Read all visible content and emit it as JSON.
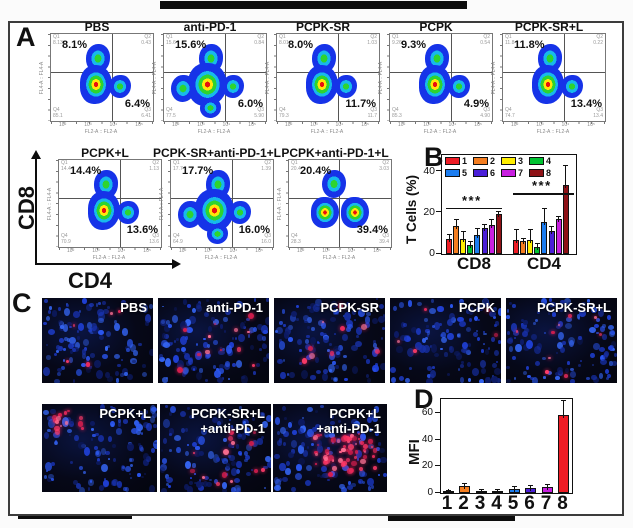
{
  "figure": {
    "panel_a": "A",
    "panel_b": "B",
    "panel_c": "C",
    "panel_d": "D",
    "cd8_axis": "CD8",
    "cd4_axis": "CD4"
  },
  "flow": {
    "y_axis_label": "FL4-A :: FL4-A",
    "x_axis_label": "FL2-A :: FL2-A",
    "x_ticks": [
      "10²",
      "10³",
      "10⁴",
      "10⁵"
    ],
    "plots": [
      {
        "title": "PBS",
        "cd8_pct": "8.1%",
        "cd4_pct": "6.4%",
        "q1": "Q1",
        "q2": "Q2",
        "q3": "Q3",
        "q4": "Q4",
        "q1v": "8.13",
        "q2v": "0.43",
        "q3v": "6.41",
        "q4v": "85.1",
        "variant": "std"
      },
      {
        "title": "anti-PD-1",
        "cd8_pct": "15.6%",
        "cd4_pct": "6.0%",
        "q1": "Q1",
        "q2": "Q2",
        "q3": "Q3",
        "q4": "Q4",
        "q1v": "15.6",
        "q2v": "0.84",
        "q3v": "5.90",
        "q4v": "77.5",
        "variant": "wide"
      },
      {
        "title": "PCPK-SR",
        "cd8_pct": "8.0%",
        "cd4_pct": "11.7%",
        "q1": "Q1",
        "q2": "Q2",
        "q3": "Q3",
        "q4": "Q4",
        "q1v": "8.01",
        "q2v": "1.03",
        "q3v": "11.7",
        "q4v": "79.3",
        "variant": "std"
      },
      {
        "title": "PCPK",
        "cd8_pct": "9.3%",
        "cd4_pct": "4.9%",
        "q1": "Q1",
        "q2": "Q2",
        "q3": "Q3",
        "q4": "Q4",
        "q1v": "9.26",
        "q2v": "0.54",
        "q3v": "4.90",
        "q4v": "85.3",
        "variant": "std"
      },
      {
        "title": "PCPK-SR+L",
        "cd8_pct": "11.8%",
        "cd4_pct": "13.4%",
        "q1": "Q1",
        "q2": "Q2",
        "q3": "Q3",
        "q4": "Q4",
        "q1v": "11.8",
        "q2v": "0.22",
        "q3v": "13.4",
        "q4v": "74.7",
        "variant": "std"
      },
      {
        "title": "PCPK+L",
        "cd8_pct": "14.4%",
        "cd4_pct": "13.6%",
        "q1": "Q1",
        "q2": "Q2",
        "q3": "Q3",
        "q4": "Q4",
        "q1v": "14.4",
        "q2v": "1.13",
        "q3v": "13.6",
        "q4v": "70.9",
        "variant": "std"
      },
      {
        "title": "PCPK-SR+anti-PD-1+L",
        "cd8_pct": "17.7%",
        "cd4_pct": "16.0%",
        "q1": "Q1",
        "q2": "Q2",
        "q3": "Q3",
        "q4": "Q4",
        "q1v": "17.7",
        "q2v": "1.39",
        "q3v": "16.0",
        "q4v": "64.9",
        "variant": "wide"
      },
      {
        "title": "PCPK+anti-PD-1+L",
        "cd8_pct": "20.4%",
        "cd4_pct": "39.4%",
        "q1": "Q1",
        "q2": "Q2",
        "q3": "Q3",
        "q4": "Q4",
        "q1v": "20.4",
        "q2v": "3.03",
        "q3v": "39.4",
        "q4v": "28.3",
        "variant": "double"
      }
    ]
  },
  "microscopy": {
    "tiles": [
      {
        "label": "PBS",
        "label2": "",
        "red_spots": 5,
        "cluster": "none"
      },
      {
        "label": "anti-PD-1",
        "label2": "",
        "red_spots": 12,
        "cluster": "none"
      },
      {
        "label": "PCPK-SR",
        "label2": "",
        "red_spots": 9,
        "cluster": "none"
      },
      {
        "label": "PCPK",
        "label2": "",
        "red_spots": 5,
        "cluster": "none"
      },
      {
        "label": "PCPK-SR+L",
        "label2": "",
        "red_spots": 9,
        "cluster": "none"
      },
      {
        "label": "PCPK+L",
        "label2": "",
        "red_spots": 14,
        "cluster": "topleft"
      },
      {
        "label": "PCPK-SR+L",
        "label2": "+anti-PD-1",
        "red_spots": 14,
        "cluster": "none"
      },
      {
        "label": "PCPK+L",
        "label2": "+anti-PD-1",
        "red_spots": 60,
        "cluster": "center"
      }
    ]
  },
  "chart_data": [
    {
      "id": "B",
      "type": "bar",
      "panel": "B",
      "ylabel": "T Cells (%)",
      "xlabel": "",
      "ylim": [
        0,
        48
      ],
      "yticks": [
        0,
        20,
        40
      ],
      "categories": [
        "CD8",
        "CD4"
      ],
      "series_labels": [
        "1",
        "2",
        "3",
        "4",
        "5",
        "6",
        "7",
        "8"
      ],
      "colors": [
        "#ee1c25",
        "#f57e20",
        "#ffee00",
        "#00c331",
        "#1c7df0",
        "#4a1fd8",
        "#c81fe0",
        "#8e1116"
      ],
      "groups": [
        {
          "category": "CD8",
          "values": [
            7.5,
            13.5,
            7.2,
            4.4,
            9.2,
            12.8,
            14.2,
            19.5
          ],
          "errors": [
            1.5,
            3.0,
            3.5,
            1.2,
            2.8,
            1.5,
            2.5,
            1.0
          ]
        },
        {
          "category": "CD4",
          "values": [
            7.0,
            6.3,
            7.0,
            3.2,
            15.3,
            11.0,
            16.8,
            33.5
          ],
          "errors": [
            4.5,
            1.2,
            4.5,
            1.5,
            6.5,
            2.0,
            1.0,
            9.0
          ]
        }
      ],
      "significance": [
        {
          "category": "CD8",
          "label": "***",
          "y": 22
        },
        {
          "category": "CD4",
          "label": "***",
          "y": 29
        }
      ],
      "legend_position": "top-inside",
      "grid": false
    },
    {
      "id": "D",
      "type": "bar",
      "panel": "D",
      "ylabel": "MFI",
      "xlabel": "",
      "ylim": [
        0,
        71
      ],
      "yticks": [
        0,
        20,
        40,
        60
      ],
      "categories": [
        "1",
        "2",
        "3",
        "4",
        "5",
        "6",
        "7",
        "8"
      ],
      "values": [
        0.8,
        5.2,
        1.8,
        1.5,
        3.0,
        4.0,
        4.2,
        59
      ],
      "errors": [
        0.4,
        1.5,
        0.8,
        0.6,
        1.2,
        1.5,
        1.8,
        18
      ],
      "colors": [
        "#ee1c25",
        "#f57e20",
        "#ffee00",
        "#00c331",
        "#1c7df0",
        "#4a1fd8",
        "#c81fe0",
        "#ee1c25"
      ],
      "grid": false
    }
  ]
}
